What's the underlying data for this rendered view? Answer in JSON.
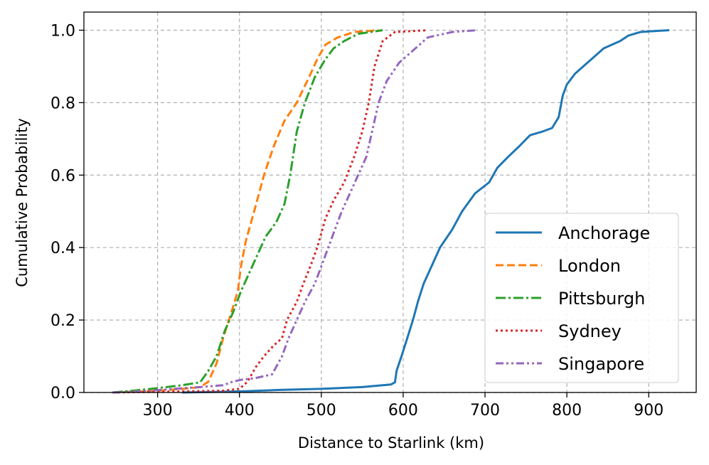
{
  "chart_data": {
    "type": "line",
    "xlabel": "Distance to Starlink (km)",
    "ylabel": "Cumulative Probability",
    "xlim": [
      210,
      958
    ],
    "ylim": [
      0,
      1.05
    ],
    "xticks": [
      300,
      400,
      500,
      600,
      700,
      800,
      900
    ],
    "yticks": [
      0.0,
      0.2,
      0.4,
      0.6,
      0.8,
      1.0
    ],
    "xtick_labels": [
      "300",
      "400",
      "500",
      "600",
      "700",
      "800",
      "900"
    ],
    "ytick_labels": [
      "0.0",
      "0.2",
      "0.4",
      "0.6",
      "0.8",
      "1.0"
    ],
    "grid": true,
    "legend_position": "lower-right",
    "series": [
      {
        "name": "Anchorage",
        "color": "#1f77b4",
        "style": "solid",
        "points": [
          [
            330,
            0
          ],
          [
            400,
            0.003
          ],
          [
            450,
            0.007
          ],
          [
            500,
            0.01
          ],
          [
            550,
            0.015
          ],
          [
            585,
            0.022
          ],
          [
            590,
            0.028
          ],
          [
            592,
            0.06
          ],
          [
            598,
            0.1
          ],
          [
            605,
            0.15
          ],
          [
            612,
            0.2
          ],
          [
            618,
            0.25
          ],
          [
            625,
            0.3
          ],
          [
            635,
            0.35
          ],
          [
            645,
            0.4
          ],
          [
            660,
            0.45
          ],
          [
            672,
            0.5
          ],
          [
            688,
            0.55
          ],
          [
            705,
            0.58
          ],
          [
            715,
            0.62
          ],
          [
            728,
            0.65
          ],
          [
            742,
            0.68
          ],
          [
            755,
            0.71
          ],
          [
            770,
            0.72
          ],
          [
            782,
            0.73
          ],
          [
            790,
            0.76
          ],
          [
            795,
            0.82
          ],
          [
            800,
            0.85
          ],
          [
            810,
            0.88
          ],
          [
            820,
            0.9
          ],
          [
            830,
            0.92
          ],
          [
            845,
            0.95
          ],
          [
            855,
            0.96
          ],
          [
            865,
            0.97
          ],
          [
            875,
            0.985
          ],
          [
            890,
            0.995
          ],
          [
            910,
            0.998
          ],
          [
            925,
            1.0
          ]
        ]
      },
      {
        "name": "London",
        "color": "#ff7f0e",
        "style": "dashed",
        "points": [
          [
            245,
            0
          ],
          [
            300,
            0.005
          ],
          [
            330,
            0.01
          ],
          [
            352,
            0.015
          ],
          [
            362,
            0.03
          ],
          [
            372,
            0.08
          ],
          [
            380,
            0.15
          ],
          [
            390,
            0.22
          ],
          [
            398,
            0.28
          ],
          [
            402,
            0.35
          ],
          [
            408,
            0.42
          ],
          [
            418,
            0.5
          ],
          [
            430,
            0.6
          ],
          [
            442,
            0.68
          ],
          [
            455,
            0.75
          ],
          [
            470,
            0.8
          ],
          [
            485,
            0.87
          ],
          [
            495,
            0.92
          ],
          [
            505,
            0.96
          ],
          [
            520,
            0.98
          ],
          [
            540,
            0.995
          ],
          [
            570,
            1.0
          ]
        ]
      },
      {
        "name": "Pittsburgh",
        "color": "#2ca02c",
        "style": "dashdot",
        "points": [
          [
            245,
            0
          ],
          [
            270,
            0.005
          ],
          [
            300,
            0.012
          ],
          [
            330,
            0.02
          ],
          [
            352,
            0.028
          ],
          [
            362,
            0.06
          ],
          [
            372,
            0.1
          ],
          [
            382,
            0.17
          ],
          [
            392,
            0.22
          ],
          [
            402,
            0.28
          ],
          [
            412,
            0.33
          ],
          [
            422,
            0.38
          ],
          [
            432,
            0.43
          ],
          [
            445,
            0.47
          ],
          [
            455,
            0.52
          ],
          [
            462,
            0.6
          ],
          [
            470,
            0.72
          ],
          [
            480,
            0.8
          ],
          [
            492,
            0.87
          ],
          [
            505,
            0.92
          ],
          [
            515,
            0.95
          ],
          [
            528,
            0.97
          ],
          [
            545,
            0.99
          ],
          [
            575,
            1.0
          ]
        ]
      },
      {
        "name": "Sydney",
        "color": "#d62728",
        "style": "dotted",
        "points": [
          [
            245,
            0
          ],
          [
            300,
            0.002
          ],
          [
            380,
            0.005
          ],
          [
            400,
            0.01
          ],
          [
            410,
            0.03
          ],
          [
            420,
            0.07
          ],
          [
            430,
            0.1
          ],
          [
            442,
            0.13
          ],
          [
            452,
            0.15
          ],
          [
            458,
            0.2
          ],
          [
            470,
            0.25
          ],
          [
            478,
            0.3
          ],
          [
            487,
            0.35
          ],
          [
            495,
            0.4
          ],
          [
            505,
            0.48
          ],
          [
            515,
            0.53
          ],
          [
            528,
            0.58
          ],
          [
            540,
            0.65
          ],
          [
            550,
            0.72
          ],
          [
            558,
            0.8
          ],
          [
            565,
            0.9
          ],
          [
            575,
            0.97
          ],
          [
            590,
            0.995
          ],
          [
            630,
            1.0
          ]
        ]
      },
      {
        "name": "Singapore",
        "color": "#9467bd",
        "style": "dashdotdot",
        "points": [
          [
            245,
            0
          ],
          [
            280,
            0.003
          ],
          [
            320,
            0.01
          ],
          [
            352,
            0.015
          ],
          [
            380,
            0.02
          ],
          [
            392,
            0.03
          ],
          [
            402,
            0.035
          ],
          [
            420,
            0.04
          ],
          [
            440,
            0.05
          ],
          [
            452,
            0.1
          ],
          [
            460,
            0.15
          ],
          [
            470,
            0.2
          ],
          [
            480,
            0.25
          ],
          [
            492,
            0.3
          ],
          [
            502,
            0.36
          ],
          [
            515,
            0.44
          ],
          [
            525,
            0.5
          ],
          [
            535,
            0.55
          ],
          [
            545,
            0.6
          ],
          [
            555,
            0.65
          ],
          [
            562,
            0.72
          ],
          [
            570,
            0.8
          ],
          [
            580,
            0.86
          ],
          [
            595,
            0.91
          ],
          [
            615,
            0.95
          ],
          [
            630,
            0.98
          ],
          [
            660,
            0.995
          ],
          [
            690,
            1.0
          ]
        ]
      }
    ]
  }
}
